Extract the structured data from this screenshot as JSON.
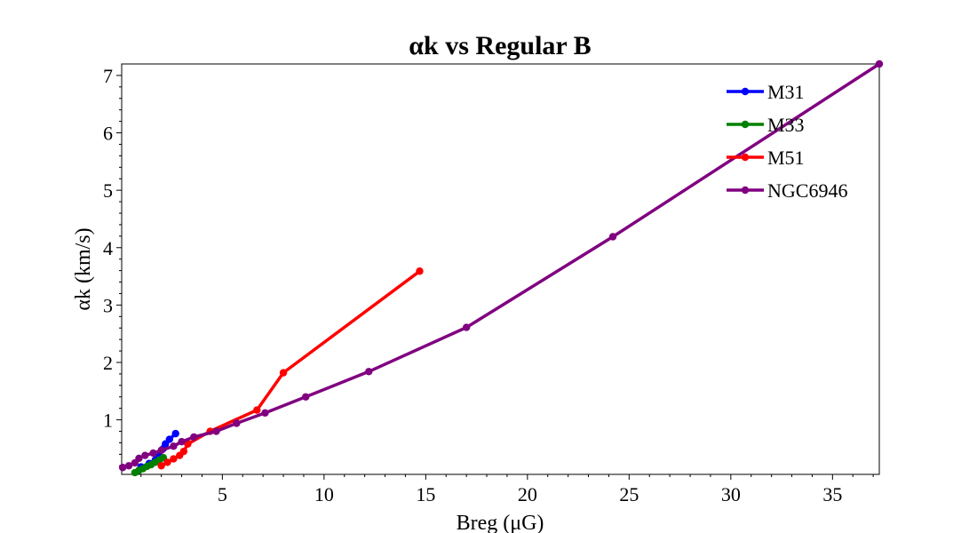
{
  "chart_data": {
    "type": "line",
    "title": "αk vs Regular B",
    "xlabel": "Breg (μG)",
    "ylabel": "αk (km/s)",
    "xlim": [
      0.05,
      37.3
    ],
    "ylim": [
      0.05,
      7.2
    ],
    "xticks": [
      5,
      10,
      15,
      20,
      25,
      30,
      35
    ],
    "yticks": [
      1,
      2,
      3,
      4,
      5,
      6,
      7
    ],
    "grid": false,
    "legend_position": "top-right",
    "series": [
      {
        "name": "M31",
        "color": "#0000ff",
        "x": [
          1.0,
          1.4,
          1.7,
          1.9,
          2.1,
          2.2,
          2.4,
          2.7
        ],
        "y": [
          0.18,
          0.24,
          0.3,
          0.36,
          0.5,
          0.58,
          0.66,
          0.76
        ]
      },
      {
        "name": "M33",
        "color": "#008000",
        "x": [
          0.7,
          0.9,
          1.1,
          1.3,
          1.5,
          1.7,
          1.9,
          2.1
        ],
        "y": [
          0.08,
          0.12,
          0.15,
          0.19,
          0.22,
          0.26,
          0.3,
          0.34
        ]
      },
      {
        "name": "M51",
        "color": "#ff0000",
        "x": [
          2.0,
          2.3,
          2.6,
          2.9,
          3.1,
          3.3,
          4.4,
          6.7,
          8.0,
          14.7
        ],
        "y": [
          0.2,
          0.26,
          0.32,
          0.38,
          0.45,
          0.58,
          0.8,
          1.17,
          1.82,
          3.59
        ]
      },
      {
        "name": "NGC6946",
        "color": "#800080",
        "x": [
          0.1,
          0.4,
          0.7,
          0.9,
          1.2,
          1.6,
          2.0,
          2.6,
          3.0,
          3.6,
          4.7,
          5.7,
          7.1,
          9.1,
          12.2,
          17.0,
          24.2,
          37.3
        ],
        "y": [
          0.17,
          0.2,
          0.25,
          0.33,
          0.38,
          0.42,
          0.47,
          0.54,
          0.62,
          0.7,
          0.8,
          0.94,
          1.12,
          1.4,
          1.84,
          2.61,
          4.19,
          7.2
        ]
      }
    ]
  }
}
